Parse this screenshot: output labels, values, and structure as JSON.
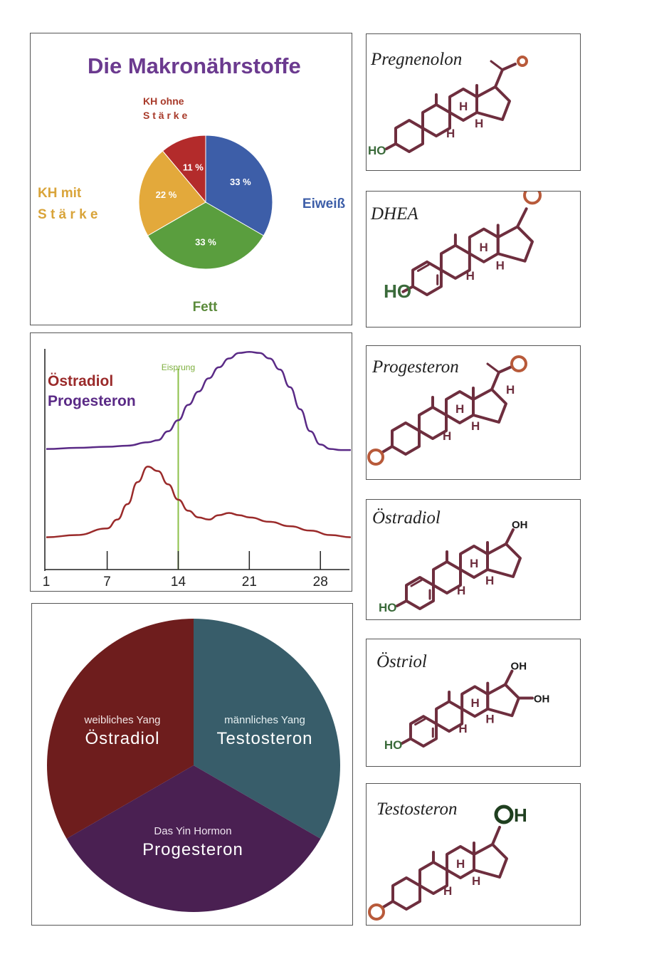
{
  "macro_chart": {
    "title": "Die Makronährstoffe",
    "colors": {
      "title": "#6b3a8f"
    },
    "chart_data": {
      "type": "pie",
      "slices": [
        {
          "label_line1": "",
          "label_line2": "Eiweiß",
          "value": 33,
          "value_label": "33 %",
          "color": "#3d5ea8"
        },
        {
          "label_line1": "",
          "label_line2": "Fett",
          "value": 33,
          "value_label": "33 %",
          "color": "#5a9e3e"
        },
        {
          "label_line1": "KH      mit",
          "label_line2": "S t ä r k e",
          "value": 22,
          "value_label": "22 %",
          "color": "#e3a93b"
        },
        {
          "label_line1": "KH  ohne",
          "label_line2": "S t ä r k e",
          "value": 11,
          "value_label": "11 %",
          "color": "#b32b2b"
        }
      ]
    }
  },
  "cycle_chart": {
    "legend": {
      "estradiol": "Östradiol",
      "progesterone": "Progesteron"
    },
    "ovulation_label": "Eisprung",
    "chart_data": {
      "type": "line",
      "xlim": [
        1,
        31
      ],
      "ylim": [
        0,
        100
      ],
      "x_ticks": [
        1,
        7,
        14,
        21,
        28
      ],
      "ovulation_day": 14,
      "series": [
        {
          "name": "Progesteron",
          "color": "#5a2a86",
          "x": [
            1,
            4,
            7,
            9,
            11,
            12,
            13,
            14,
            15,
            16,
            17,
            18,
            19,
            20,
            21,
            22,
            23,
            24,
            25,
            26,
            27,
            28,
            29,
            30,
            31
          ],
          "y": [
            54,
            54.5,
            55,
            55.5,
            57,
            58,
            62,
            67,
            74,
            80,
            86,
            91,
            95,
            97.5,
            98,
            97.5,
            95,
            90,
            82,
            72,
            62,
            56,
            54,
            53.5,
            53.5
          ]
        },
        {
          "name": "Östradiol",
          "color": "#9a2a2a",
          "x": [
            1,
            4,
            7,
            8,
            9,
            10,
            11,
            12,
            13,
            14,
            15,
            16,
            17,
            18,
            19,
            20,
            21,
            23,
            25,
            27,
            29,
            31
          ],
          "y": [
            14,
            15,
            18,
            22,
            29,
            39,
            46,
            44,
            38,
            31,
            26,
            23,
            22,
            24,
            25,
            24,
            23,
            21,
            19,
            17,
            15,
            14
          ]
        }
      ]
    }
  },
  "hormone_wheel": {
    "sectors": [
      {
        "subtitle": "weibliches Yang",
        "title": "Östradiol",
        "color": "#6e1d1d"
      },
      {
        "subtitle": "männliches Yang",
        "title": "Testosteron",
        "color": "#385d6a"
      },
      {
        "subtitle": "Das Yin Hormon",
        "title": "Progesteron",
        "color": "#4a2052"
      }
    ]
  },
  "molecules": [
    {
      "name": "Pregnenolon",
      "labels": {
        "h1": "H",
        "h2": "H",
        "h3": "H",
        "oh": "HO"
      }
    },
    {
      "name": "DHEA",
      "labels": {
        "h1": "H",
        "h2": "H",
        "h3": "H",
        "oh": "HO"
      }
    },
    {
      "name": "Progesteron",
      "labels": {
        "h1": "H",
        "h2": "H",
        "h3": "H",
        "h4": "H"
      }
    },
    {
      "name": "Östradiol",
      "labels": {
        "h1": "H",
        "h2": "H",
        "h3": "H",
        "oh": "HO",
        "oh2": "OH"
      }
    },
    {
      "name": "Östriol",
      "labels": {
        "h1": "H",
        "h2": "H",
        "h3": "H",
        "oh": "HO",
        "oh2": "OH",
        "oh3": "OH"
      }
    },
    {
      "name": "Testosteron",
      "labels": {
        "h1": "H",
        "h2": "H",
        "h3": "H",
        "oh2": "OH"
      }
    }
  ],
  "colors": {
    "bond": "#6e2e3e",
    "oxygen_ring": "#b85a3a",
    "hydroxyl": "#3a6a3a"
  }
}
